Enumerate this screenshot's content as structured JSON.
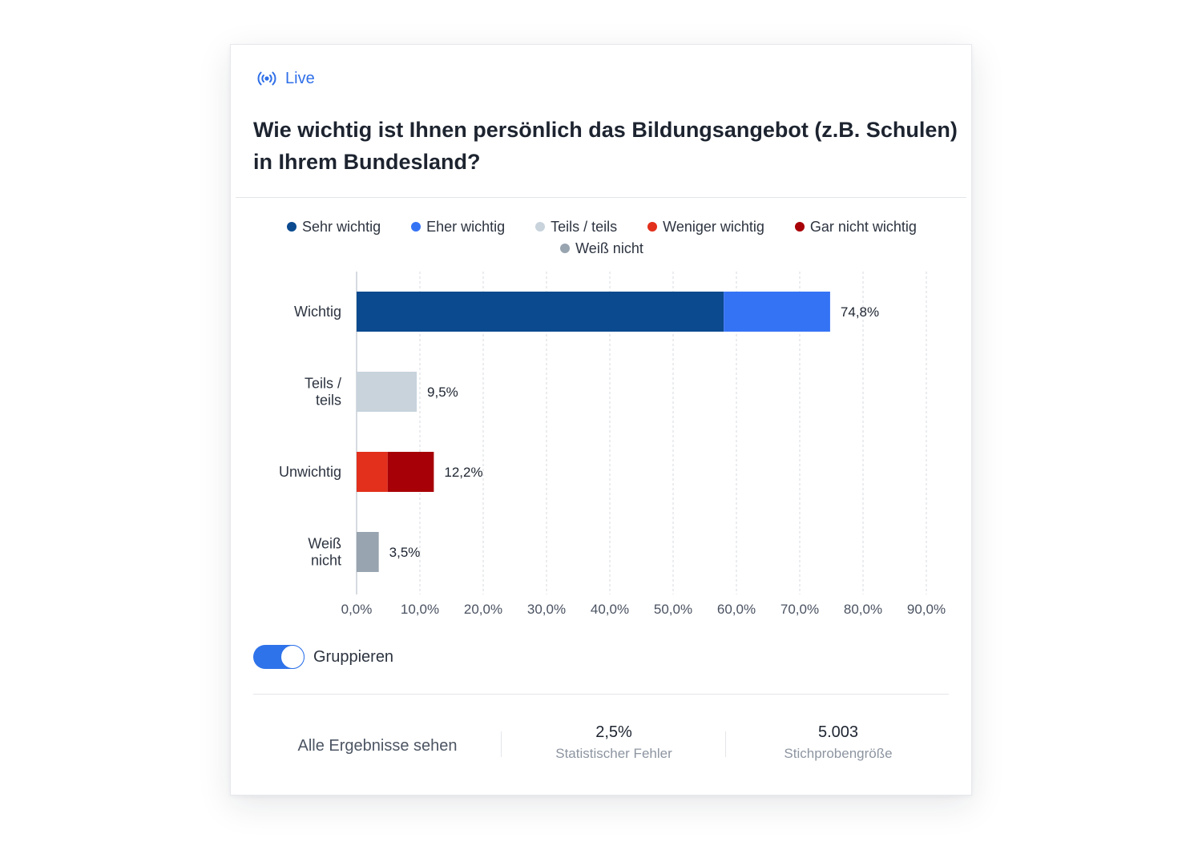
{
  "live_label": "Live",
  "question": "Wie wichtig ist Ihnen persönlich das Bildungsangebot (z.B. Schulen) in Ihrem Bundesland?",
  "legend": [
    {
      "label": "Sehr wichtig",
      "color": "#0b4a8f"
    },
    {
      "label": "Eher wichtig",
      "color": "#3573f5"
    },
    {
      "label": "Teils / teils",
      "color": "#c8d3dc"
    },
    {
      "label": "Weniger wichtig",
      "color": "#e2301c"
    },
    {
      "label": "Gar nicht wichtig",
      "color": "#a70006"
    },
    {
      "label": "Weiß nicht",
      "color": "#98a4b0"
    }
  ],
  "chart_data": {
    "type": "bar",
    "orientation": "horizontal",
    "stacked": true,
    "categories": [
      [
        "Wichtig"
      ],
      [
        "Teils /",
        "teils"
      ],
      [
        "Unwichtig"
      ],
      [
        "Weiß",
        "nicht"
      ]
    ],
    "series": [
      {
        "name": "Sehr wichtig",
        "color": "#0b4a8f",
        "values": [
          58.0,
          0,
          0,
          0
        ]
      },
      {
        "name": "Eher wichtig",
        "color": "#3573f5",
        "values": [
          16.8,
          0,
          0,
          0
        ]
      },
      {
        "name": "Teils / teils",
        "color": "#c8d3dc",
        "values": [
          0,
          9.5,
          0,
          0
        ]
      },
      {
        "name": "Weniger wichtig",
        "color": "#e2301c",
        "values": [
          0,
          0,
          4.9,
          0
        ]
      },
      {
        "name": "Gar nicht wichtig",
        "color": "#a70006",
        "values": [
          0,
          0,
          7.3,
          0
        ]
      },
      {
        "name": "Weiß nicht",
        "color": "#98a4b0",
        "values": [
          0,
          0,
          0,
          3.5
        ]
      }
    ],
    "totals": [
      "74,8%",
      "9,5%",
      "12,2%",
      "3,5%"
    ],
    "xlim": [
      0,
      90
    ],
    "xticks": [
      "0,0%",
      "10,0%",
      "20,0%",
      "30,0%",
      "40,0%",
      "50,0%",
      "60,0%",
      "70,0%",
      "80,0%",
      "90,0%"
    ],
    "grid": true,
    "legend_position": "top"
  },
  "toggle": {
    "label": "Gruppieren",
    "on": true
  },
  "footer": {
    "link": "Alle Ergebnisse sehen",
    "stats": [
      {
        "value": "2,5%",
        "label": "Statistischer Fehler"
      },
      {
        "value": "5.003",
        "label": "Stichprobengröße"
      }
    ]
  }
}
